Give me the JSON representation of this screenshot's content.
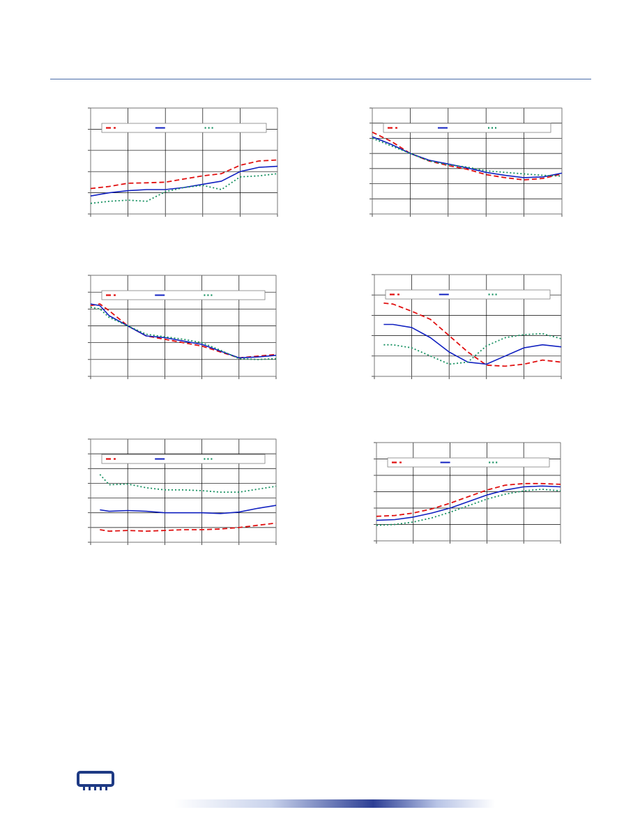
{
  "colors": {
    "red": "#e01010",
    "blue": "#1020c0",
    "green": "#169060",
    "grid": "#000000",
    "accent": "#4a6ca8"
  },
  "logo_icon": "chip-icon",
  "chart_data": [
    {
      "type": "line",
      "xlim": [
        0,
        5
      ],
      "ylim": [
        0,
        5
      ],
      "grid": true,
      "legend_position": "top",
      "x": [
        0,
        0.5,
        1,
        1.5,
        2,
        2.5,
        3,
        3.5,
        4,
        4.5,
        5
      ],
      "series": [
        {
          "style": "dash-red",
          "values": [
            1.2,
            1.3,
            1.45,
            1.47,
            1.5,
            1.65,
            1.8,
            1.9,
            2.3,
            2.5,
            2.55
          ]
        },
        {
          "style": "solid-blue",
          "values": [
            0.85,
            1.0,
            1.1,
            1.15,
            1.15,
            1.25,
            1.4,
            1.55,
            2.0,
            2.2,
            2.25
          ]
        },
        {
          "style": "dot-green",
          "values": [
            0.5,
            0.6,
            0.65,
            0.6,
            1.05,
            1.25,
            1.35,
            1.15,
            1.75,
            1.8,
            1.9
          ]
        }
      ]
    },
    {
      "type": "line",
      "xlim": [
        0,
        5
      ],
      "ylim": [
        0,
        7
      ],
      "grid": true,
      "legend_position": "top",
      "x": [
        0,
        0.5,
        1,
        1.5,
        2,
        2.5,
        3,
        3.5,
        4,
        4.5,
        5
      ],
      "series": [
        {
          "style": "dash-red",
          "values": [
            5.4,
            4.8,
            4.0,
            3.5,
            3.2,
            2.95,
            2.6,
            2.4,
            2.25,
            2.35,
            2.65
          ]
        },
        {
          "style": "solid-blue",
          "values": [
            5.1,
            4.6,
            4.0,
            3.55,
            3.3,
            3.05,
            2.75,
            2.55,
            2.4,
            2.45,
            2.7
          ]
        },
        {
          "style": "dot-green",
          "values": [
            5.0,
            4.5,
            4.0,
            3.5,
            3.25,
            3.1,
            2.85,
            2.75,
            2.65,
            2.55,
            2.5
          ]
        }
      ]
    },
    {
      "type": "line",
      "xlim": [
        0,
        5
      ],
      "ylim": [
        0,
        6
      ],
      "grid": true,
      "legend_position": "top",
      "x": [
        0,
        0.25,
        0.5,
        1,
        1.5,
        2,
        2.5,
        3,
        3.5,
        4,
        4.5,
        5
      ],
      "series": [
        {
          "style": "dash-red",
          "values": [
            4.2,
            4.3,
            3.9,
            3.0,
            2.4,
            2.2,
            2.0,
            1.8,
            1.45,
            1.1,
            1.2,
            1.3
          ]
        },
        {
          "style": "solid-blue",
          "values": [
            4.3,
            4.2,
            3.6,
            3.0,
            2.4,
            2.3,
            2.1,
            1.9,
            1.5,
            1.1,
            1.15,
            1.25
          ]
        },
        {
          "style": "dot-green",
          "values": [
            4.1,
            4.0,
            3.5,
            3.0,
            2.5,
            2.35,
            2.2,
            2.0,
            1.55,
            1.05,
            1.0,
            1.05
          ]
        }
      ]
    },
    {
      "type": "line",
      "xlim": [
        0,
        5
      ],
      "ylim": [
        0,
        5
      ],
      "grid": true,
      "legend_position": "top",
      "x": [
        0.25,
        0.5,
        1,
        1.5,
        2,
        2.5,
        3,
        3.5,
        4,
        4.5,
        5
      ],
      "series": [
        {
          "style": "dash-red",
          "values": [
            3.6,
            3.55,
            3.2,
            2.8,
            2.0,
            1.2,
            0.55,
            0.5,
            0.6,
            0.8,
            0.7
          ]
        },
        {
          "style": "solid-blue",
          "values": [
            2.55,
            2.55,
            2.4,
            1.9,
            1.2,
            0.7,
            0.6,
            1.0,
            1.4,
            1.55,
            1.45
          ]
        },
        {
          "style": "dot-green",
          "values": [
            1.55,
            1.55,
            1.4,
            1.0,
            0.6,
            0.7,
            1.5,
            1.9,
            2.05,
            2.1,
            1.85
          ]
        }
      ]
    },
    {
      "type": "line",
      "xlim": [
        0,
        5
      ],
      "ylim": [
        0,
        7
      ],
      "grid": true,
      "legend_position": "top",
      "x": [
        0.25,
        0.5,
        1,
        1.5,
        2,
        2.5,
        3,
        3.5,
        4,
        4.5,
        5
      ],
      "series": [
        {
          "style": "dash-red",
          "values": [
            0.85,
            0.75,
            0.8,
            0.75,
            0.8,
            0.85,
            0.85,
            0.9,
            1.0,
            1.15,
            1.3
          ]
        },
        {
          "style": "solid-blue",
          "values": [
            2.2,
            2.1,
            2.15,
            2.1,
            2.0,
            2.0,
            2.0,
            1.95,
            2.05,
            2.3,
            2.5
          ]
        },
        {
          "style": "dot-green",
          "values": [
            4.6,
            3.9,
            3.95,
            3.7,
            3.55,
            3.55,
            3.5,
            3.4,
            3.4,
            3.6,
            3.8
          ]
        }
      ]
    },
    {
      "type": "line",
      "xlim": [
        0,
        5
      ],
      "ylim": [
        0,
        6
      ],
      "grid": true,
      "legend_position": "top",
      "x": [
        0,
        0.5,
        1,
        1.5,
        2,
        2.5,
        3,
        3.5,
        4,
        4.5,
        5
      ],
      "series": [
        {
          "style": "dash-red",
          "values": [
            1.5,
            1.55,
            1.7,
            1.95,
            2.3,
            2.7,
            3.1,
            3.4,
            3.5,
            3.5,
            3.45
          ]
        },
        {
          "style": "solid-blue",
          "values": [
            1.25,
            1.3,
            1.45,
            1.7,
            2.0,
            2.4,
            2.8,
            3.1,
            3.3,
            3.35,
            3.3
          ]
        },
        {
          "style": "dot-green",
          "values": [
            0.95,
            1.0,
            1.15,
            1.4,
            1.75,
            2.15,
            2.55,
            2.85,
            3.05,
            3.15,
            3.05
          ]
        }
      ]
    }
  ]
}
